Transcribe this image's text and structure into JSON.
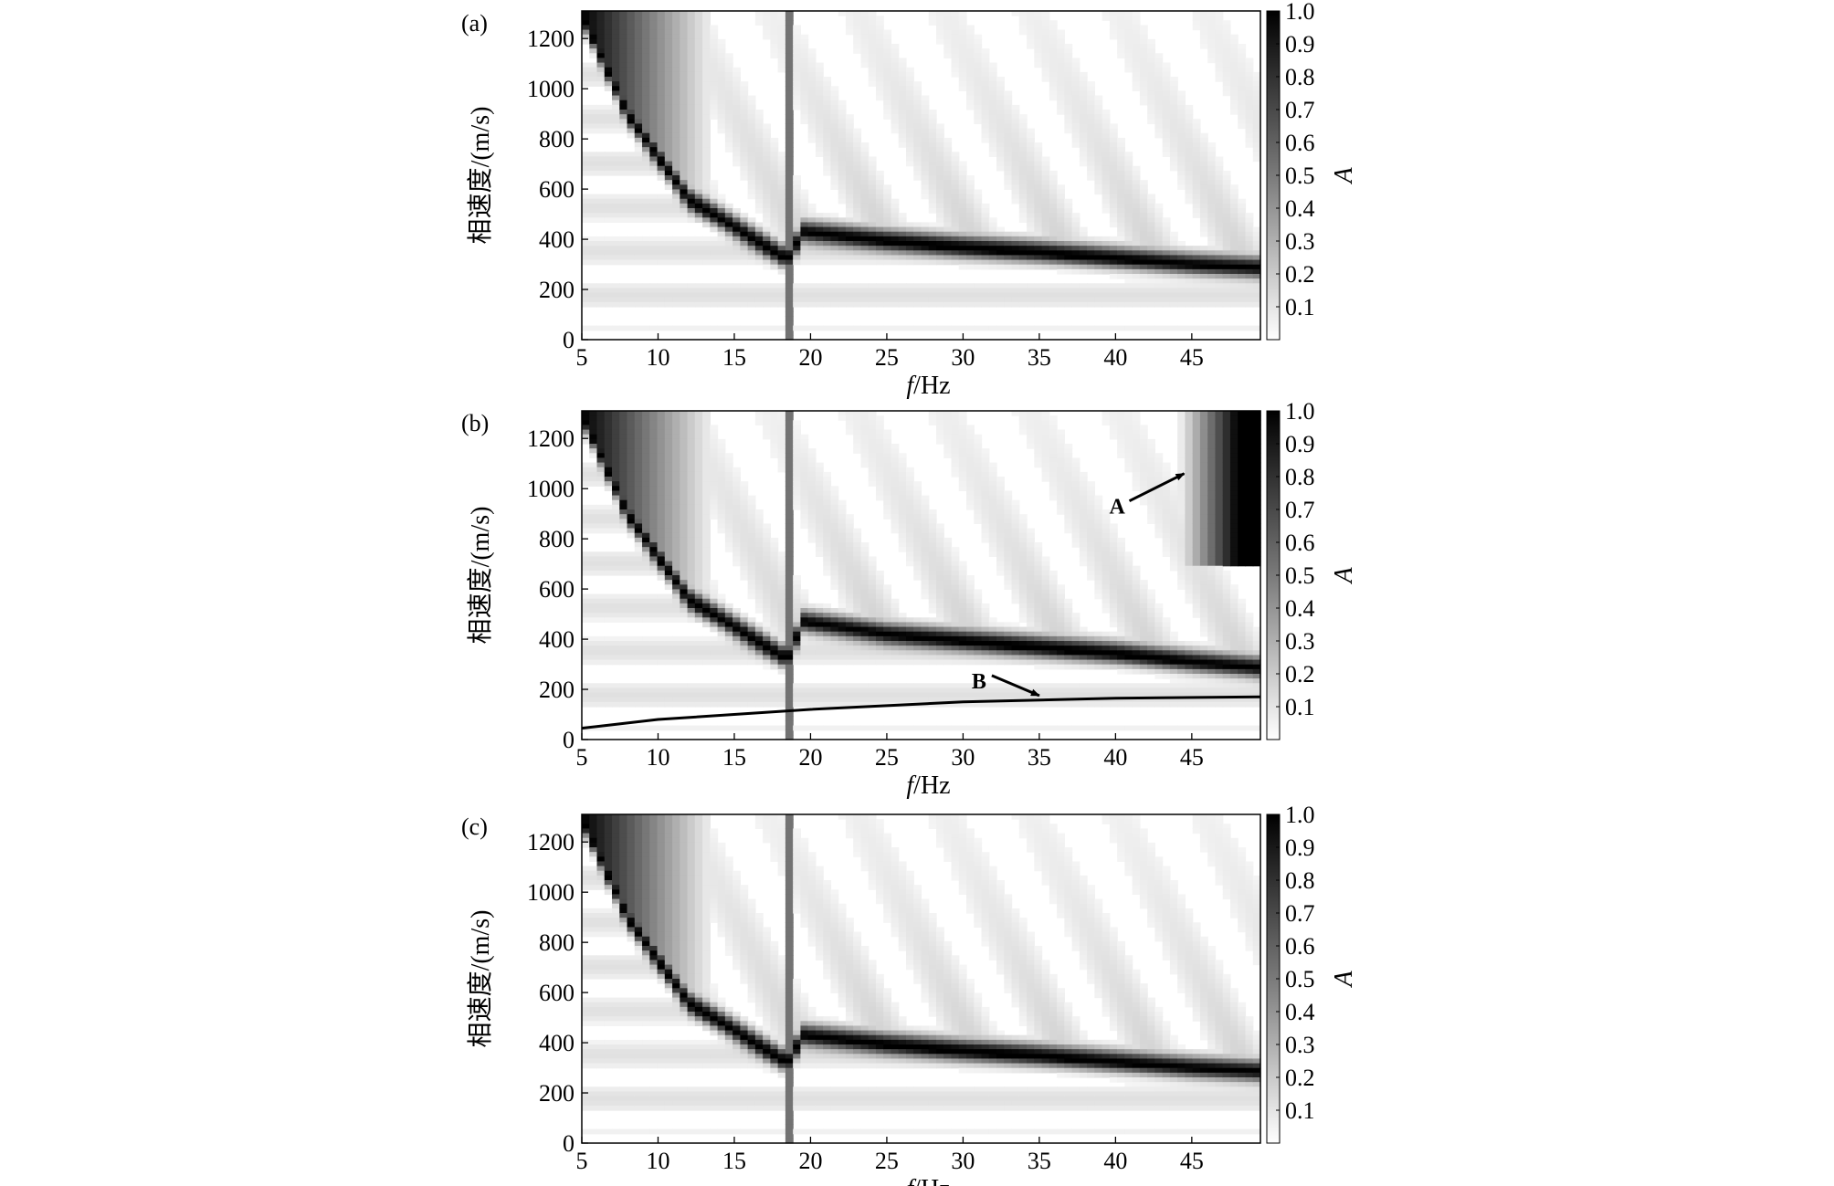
{
  "chart_data": [
    {
      "panel_label": "(a)",
      "type": "heatmap",
      "xlabel_var": "f",
      "xlabel_unit": "/Hz",
      "ylabel": "相速度/(m/s)",
      "xlim": [
        5,
        49.5
      ],
      "ylim": [
        0,
        1310
      ],
      "xticks": [
        5,
        10,
        15,
        20,
        25,
        30,
        35,
        40,
        45
      ],
      "yticks": [
        0,
        200,
        400,
        600,
        800,
        1000,
        1200
      ],
      "colorbar": {
        "label": "A",
        "range": [
          0,
          1
        ],
        "ticks": [
          "0.1",
          "0.2",
          "0.3",
          "0.4",
          "0.5",
          "0.6",
          "0.7",
          "0.8",
          "0.9",
          "1.0"
        ],
        "colors": [
          "#ffffff",
          "#000000"
        ]
      },
      "ridge": {
        "description": "fundamental mode dispersion energy",
        "points": [
          [
            5,
            1300
          ],
          [
            8,
            900
          ],
          [
            12,
            560
          ],
          [
            18.5,
            320
          ],
          [
            19.5,
            430
          ],
          [
            25,
            395
          ],
          [
            30,
            370
          ],
          [
            35,
            350
          ],
          [
            40,
            325
          ],
          [
            45,
            300
          ],
          [
            49.5,
            285
          ]
        ]
      },
      "notch_x": 18.5,
      "annotations": []
    },
    {
      "panel_label": "(b)",
      "type": "heatmap",
      "xlabel_var": "f",
      "xlabel_unit": "/Hz",
      "ylabel": "相速度/(m/s)",
      "xlim": [
        5,
        49.5
      ],
      "ylim": [
        0,
        1310
      ],
      "xticks": [
        5,
        10,
        15,
        20,
        25,
        30,
        35,
        40,
        45
      ],
      "yticks": [
        0,
        200,
        400,
        600,
        800,
        1000,
        1200
      ],
      "colorbar": {
        "label": "A",
        "range": [
          0,
          1
        ],
        "ticks": [
          "0.1",
          "0.2",
          "0.3",
          "0.4",
          "0.5",
          "0.6",
          "0.7",
          "0.8",
          "0.9",
          "1.0"
        ],
        "colors": [
          "#ffffff",
          "#000000"
        ]
      },
      "ridge": {
        "description": "fundamental mode dispersion energy",
        "points": [
          [
            5,
            1300
          ],
          [
            8,
            900
          ],
          [
            12,
            560
          ],
          [
            18.5,
            320
          ],
          [
            19.5,
            470
          ],
          [
            25,
            420
          ],
          [
            30,
            395
          ],
          [
            35,
            370
          ],
          [
            40,
            345
          ],
          [
            45,
            310
          ],
          [
            49.5,
            285
          ]
        ]
      },
      "notch_x": 18.5,
      "annotations": [
        {
          "text": "A",
          "arrow_to": [
            44.5,
            1060
          ]
        },
        {
          "text": "B",
          "arrow_to": [
            35,
            175
          ]
        }
      ],
      "extra_curve_B": [
        [
          5,
          45
        ],
        [
          10,
          80
        ],
        [
          20,
          120
        ],
        [
          30,
          150
        ],
        [
          40,
          165
        ],
        [
          49.5,
          170
        ]
      ]
    },
    {
      "panel_label": "(c)",
      "type": "heatmap",
      "xlabel_var": "f",
      "xlabel_unit": "/Hz",
      "ylabel": "相速度/(m/s)",
      "xlim": [
        5,
        49.5
      ],
      "ylim": [
        0,
        1310
      ],
      "xticks": [
        5,
        10,
        15,
        20,
        25,
        30,
        35,
        40,
        45
      ],
      "yticks": [
        0,
        200,
        400,
        600,
        800,
        1000,
        1200
      ],
      "colorbar": {
        "label": "A",
        "range": [
          0,
          1
        ],
        "ticks": [
          "0.1",
          "0.2",
          "0.3",
          "0.4",
          "0.5",
          "0.6",
          "0.7",
          "0.8",
          "0.9",
          "1.0"
        ],
        "colors": [
          "#ffffff",
          "#000000"
        ]
      },
      "ridge": {
        "description": "fundamental mode dispersion energy",
        "points": [
          [
            5,
            1300
          ],
          [
            8,
            900
          ],
          [
            12,
            560
          ],
          [
            18.5,
            320
          ],
          [
            19.5,
            430
          ],
          [
            25,
            395
          ],
          [
            30,
            370
          ],
          [
            35,
            350
          ],
          [
            40,
            325
          ],
          [
            45,
            300
          ],
          [
            49.5,
            285
          ]
        ]
      },
      "notch_x": 18.5,
      "annotations": []
    }
  ]
}
